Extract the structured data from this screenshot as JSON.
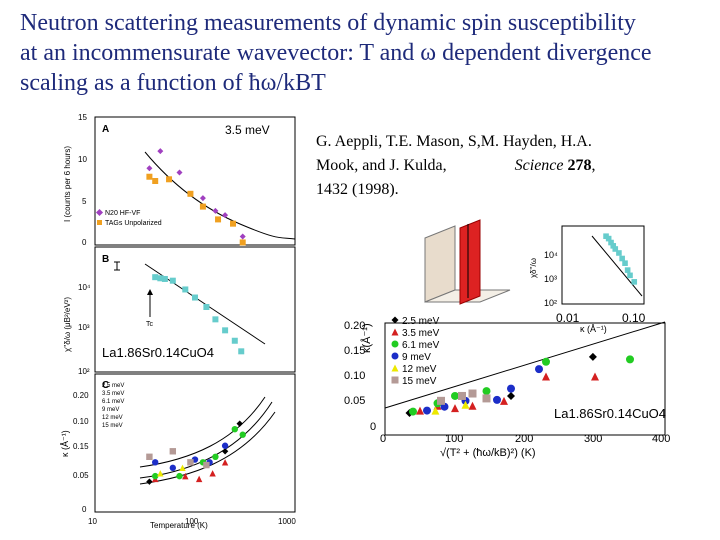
{
  "title": {
    "line1": "Neutron scattering measurements of dynamic spin susceptibility",
    "line2": "at an incommensurate wavevector: T  and  ω  dependent divergence",
    "line3": "scaling as a function of ħω/kBT"
  },
  "citation": {
    "authors1": "G. Aeppli, T.E. Mason, S,M. Hayden,     H.A.",
    "authors2": "Mook, and J. Kulda,",
    "journal": "Science",
    "volume": "278",
    "pages": "1432 (1998)."
  },
  "colors": {
    "title": "#1e2a7a",
    "black": "#000000",
    "red": "#d42020",
    "blue": "#1c2ec8",
    "green": "#22cc22",
    "yellow": "#ece800",
    "gray": "#b49a96",
    "purple": "#a040c0",
    "orange": "#f0a020",
    "cyan": "#66cccc"
  },
  "chart_data": [
    {
      "id": "A",
      "type": "scatter",
      "panel_label": "A",
      "annotation": "3.5 meV",
      "ylabel": "I (counts per 6 hours)",
      "xscale": "log",
      "xlim": [
        10,
        1000
      ],
      "ylim": [
        0,
        15
      ],
      "yticks": [
        "0",
        "5",
        "10",
        "15"
      ],
      "legend": [
        "N20 HF-VF",
        "TAGs Unpolarized"
      ],
      "series": [
        {
          "name": "N20 HF-VF",
          "color": "purple",
          "marker": "diamond",
          "x": [
            35,
            45,
            70,
            120,
            160,
            200,
            300
          ],
          "y": [
            9,
            11,
            8.5,
            5.5,
            4,
            3.5,
            1
          ]
        },
        {
          "name": "TAGs Unpolarized",
          "color": "orange",
          "marker": "square",
          "x": [
            35,
            40,
            55,
            90,
            120,
            170,
            240,
            300
          ],
          "y": [
            8,
            7.5,
            7.7,
            6,
            4.5,
            3,
            2.5,
            0.3
          ]
        }
      ]
    },
    {
      "id": "B",
      "type": "scatter",
      "panel_label": "B",
      "annotation": "La1.86Sr0.14CuO4",
      "ylabel": "χ''δ/ω (μB²/eV²)",
      "xscale": "log",
      "yscale": "log",
      "xlim": [
        10,
        1000
      ],
      "yticks": [
        "10²",
        "10³",
        "10⁴"
      ],
      "marker_label": "Tc",
      "series": [
        {
          "name": "data",
          "color": "cyan",
          "marker": "square",
          "x": [
            40,
            45,
            50,
            60,
            80,
            100,
            130,
            160,
            200,
            250,
            290
          ],
          "y": [
            9500,
            9000,
            8700,
            8000,
            5200,
            3500,
            2200,
            1200,
            700,
            420,
            250
          ]
        }
      ]
    },
    {
      "id": "C",
      "type": "scatter",
      "panel_label": "C",
      "xlabel": "Temperature (K)",
      "ylabel": "κ (Å⁻¹)",
      "xscale": "log",
      "xlim": [
        10,
        1000
      ],
      "ylim": [
        0,
        0.25
      ],
      "yticks": [
        "0",
        "0.05",
        "0.10",
        "0.15",
        "0.20"
      ],
      "xticks": [
        "10",
        "100",
        "1000"
      ],
      "legend": [
        "2.5 meV",
        "3.5 meV",
        "6.1 meV",
        "9 meV",
        "12 meV",
        "15 meV"
      ],
      "series": [
        {
          "name": "2.5 meV",
          "color": "black",
          "x": [
            35,
            200,
            280
          ],
          "y": [
            0.055,
            0.11,
            0.16
          ]
        },
        {
          "name": "3.5 meV",
          "color": "red",
          "x": [
            40,
            80,
            110,
            150,
            200
          ],
          "y": [
            0.06,
            0.065,
            0.06,
            0.07,
            0.09
          ]
        },
        {
          "name": "6.1 meV",
          "color": "green",
          "x": [
            40,
            70,
            120,
            160,
            250,
            300
          ],
          "y": [
            0.065,
            0.065,
            0.09,
            0.1,
            0.15,
            0.14
          ]
        },
        {
          "name": "9 meV",
          "color": "blue",
          "x": [
            40,
            60,
            100,
            140,
            200
          ],
          "y": [
            0.09,
            0.08,
            0.095,
            0.09,
            0.12
          ]
        },
        {
          "name": "12 meV",
          "color": "yellow",
          "x": [
            45,
            75
          ],
          "y": [
            0.07,
            0.08
          ]
        },
        {
          "name": "15 meV",
          "color": "gray",
          "x": [
            35,
            60,
            90,
            130
          ],
          "y": [
            0.1,
            0.11,
            0.09,
            0.085
          ]
        }
      ]
    },
    {
      "id": "main",
      "type": "scatter",
      "annotation": "La1.86Sr0.14CuO4",
      "xlabel": "√(T² + (ħω/kB)²) (K)",
      "ylabel": "κ(Å⁻¹)",
      "xlim": [
        0,
        400
      ],
      "ylim": [
        0,
        0.25
      ],
      "xticks": [
        "0",
        "100",
        "200",
        "300",
        "400"
      ],
      "yticks": [
        "0",
        "0.05",
        "0.10",
        "0.15",
        "0.20"
      ],
      "legend": [
        "2.5 meV",
        "3.5 meV",
        "6.1 meV",
        "9 meV",
        "12 meV",
        "15 meV"
      ],
      "series": [
        {
          "name": "2.5 meV",
          "color": "black",
          "marker": "diamond",
          "x": [
            35,
            180,
            297
          ],
          "y": [
            0.045,
            0.08,
            0.16
          ]
        },
        {
          "name": "3.5 meV",
          "color": "red",
          "marker": "triangle",
          "x": [
            50,
            75,
            100,
            125,
            170,
            230,
            300
          ],
          "y": [
            0.05,
            0.06,
            0.055,
            0.06,
            0.07,
            0.12,
            0.12
          ]
        },
        {
          "name": "6.1 meV",
          "color": "green",
          "marker": "circle",
          "x": [
            40,
            75,
            100,
            145,
            230,
            350
          ],
          "y": [
            0.048,
            0.065,
            0.08,
            0.09,
            0.15,
            0.155
          ]
        },
        {
          "name": "9 meV",
          "color": "blue",
          "marker": "circle",
          "x": [
            60,
            85,
            115,
            160,
            180,
            220
          ],
          "y": [
            0.05,
            0.058,
            0.07,
            0.072,
            0.095,
            0.135
          ]
        },
        {
          "name": "12 meV",
          "color": "yellow",
          "marker": "triangle",
          "x": [
            72,
            115
          ],
          "y": [
            0.05,
            0.062
          ]
        },
        {
          "name": "15 meV",
          "color": "gray",
          "marker": "square",
          "x": [
            80,
            110,
            125,
            145
          ],
          "y": [
            0.07,
            0.08,
            0.085,
            0.075
          ]
        }
      ]
    },
    {
      "id": "inset",
      "type": "scatter",
      "xlabel": "κ (Å⁻¹)",
      "ylabel": "χδ''/ω",
      "xscale": "log",
      "yscale": "log",
      "xticks": [
        "0.01",
        "0.10"
      ],
      "yticks": [
        "10²",
        "10³",
        "10⁴"
      ],
      "series": [
        {
          "name": "data",
          "color": "cyan",
          "marker": "square",
          "x": [
            0.05,
            0.055,
            0.06,
            0.065,
            0.07,
            0.08,
            0.09,
            0.1,
            0.11,
            0.12,
            0.14
          ],
          "y": [
            10000,
            8500,
            6500,
            5200,
            4200,
            3200,
            2200,
            1600,
            1000,
            700,
            450
          ]
        }
      ]
    }
  ]
}
